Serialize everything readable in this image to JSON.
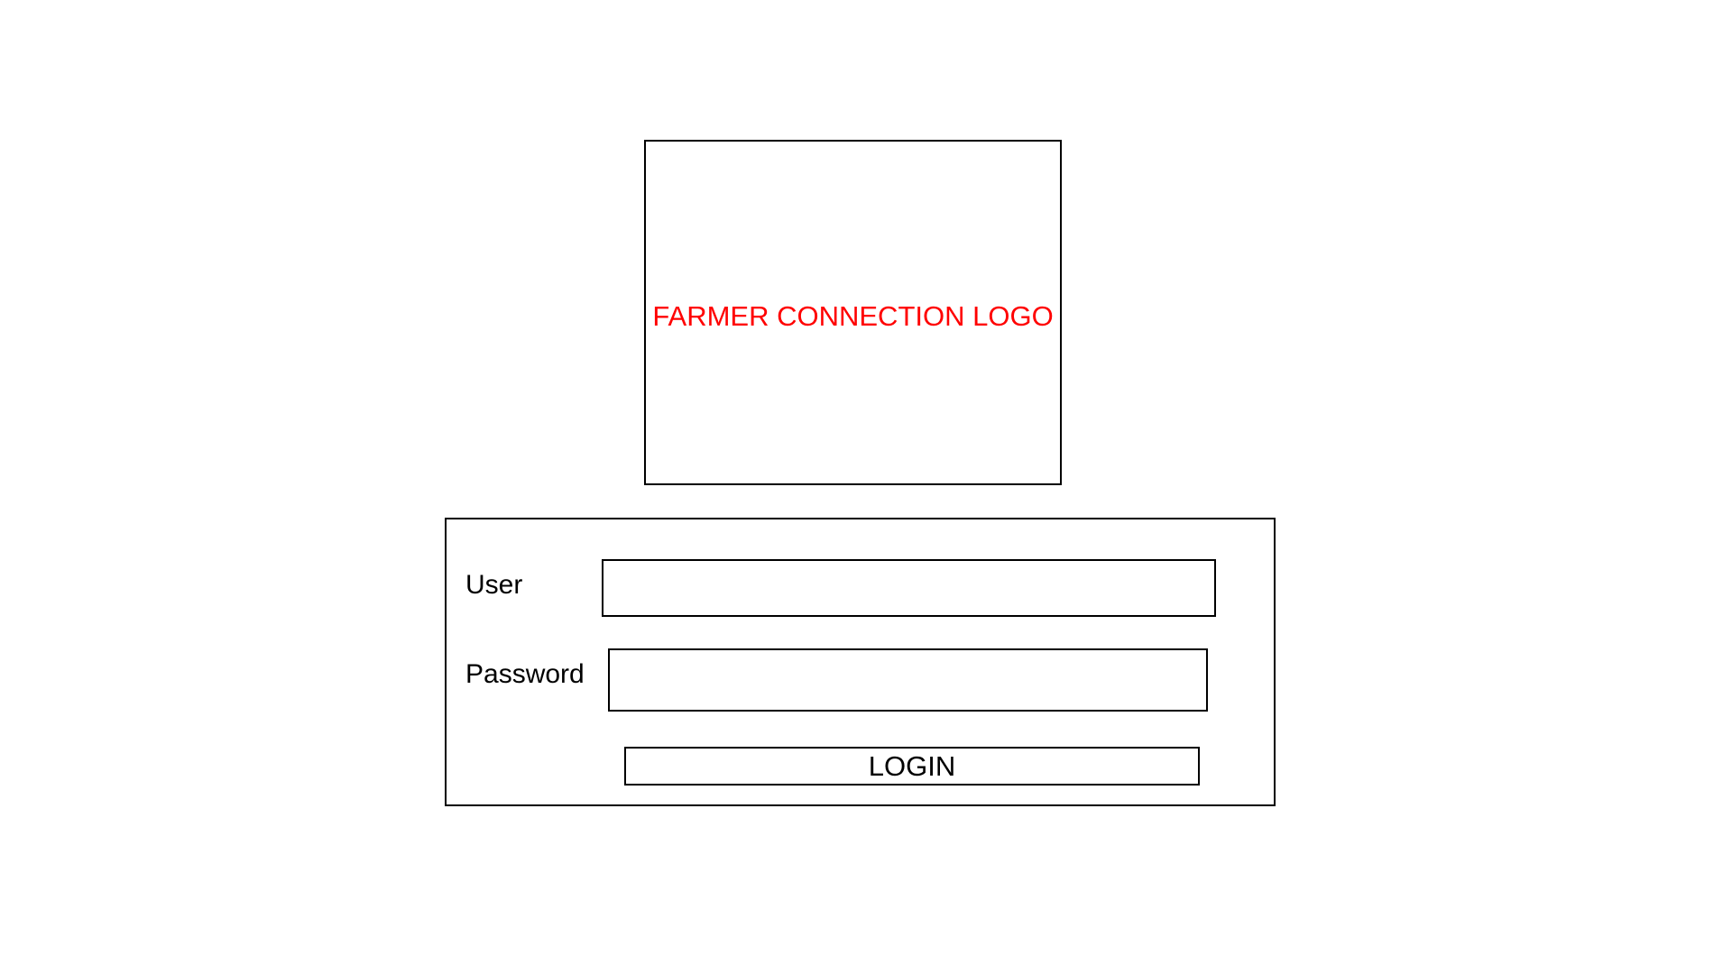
{
  "logo": {
    "text": "FARMER CONNECTION LOGO",
    "text_color": "#ff0000"
  },
  "login_form": {
    "user_label": "User",
    "user_value": "",
    "password_label": "Password",
    "password_value": "",
    "login_button_label": "LOGIN"
  }
}
